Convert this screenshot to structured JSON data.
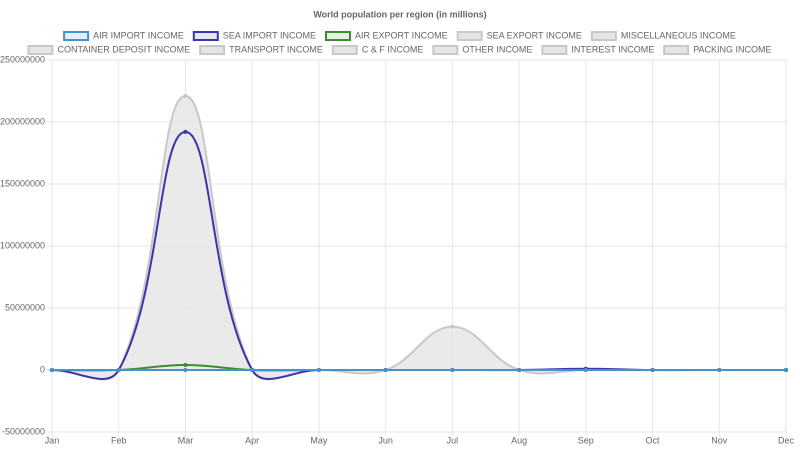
{
  "chart_data": {
    "type": "line",
    "title": "World population per region (in millions)",
    "categories": [
      "Jan",
      "Feb",
      "Mar",
      "Apr",
      "May",
      "Jun",
      "Jul",
      "Aug",
      "Sep",
      "Oct",
      "Nov",
      "Dec"
    ],
    "ylim": [
      -50000000,
      250000000
    ],
    "yticks": [
      -50000000,
      0,
      50000000,
      100000000,
      150000000,
      200000000,
      250000000
    ],
    "grid": true,
    "legend": "top",
    "series": [
      {
        "name": "AIR IMPORT INCOME",
        "color": "#3e95cd",
        "fill_color": "#e3eef6",
        "fill": false,
        "values": [
          0,
          0,
          0,
          0,
          0,
          0,
          0,
          0,
          0,
          0,
          0,
          0
        ]
      },
      {
        "name": "SEA IMPORT INCOME",
        "color": "#3a35a8",
        "fill_color": "#e6e6f2",
        "fill": false,
        "values": [
          0,
          0,
          192000000,
          0,
          0,
          0,
          0,
          0,
          1000000,
          0,
          0,
          0
        ]
      },
      {
        "name": "AIR EXPORT INCOME",
        "color": "#3c8d2f",
        "fill_color": "#e7f0e5",
        "fill": false,
        "values": [
          0,
          0,
          4000000,
          0,
          0,
          0,
          0,
          0,
          0,
          0,
          0,
          0
        ]
      },
      {
        "name": "SEA EXPORT INCOME",
        "color": "#c8c8c8",
        "fill_color": "#e5e5e5",
        "fill": true,
        "values": [
          0,
          0,
          221000000,
          0,
          0,
          0,
          35000000,
          0,
          0,
          0,
          0,
          0
        ]
      },
      {
        "name": "MISCELLANEOUS INCOME",
        "color": "#c8c8c8",
        "fill_color": "#e5e5e5",
        "fill": true,
        "values": [
          0,
          0,
          0,
          0,
          0,
          0,
          0,
          0,
          0,
          0,
          0,
          0
        ]
      },
      {
        "name": "CONTAINER DEPOSIT INCOME",
        "color": "#c8c8c8",
        "fill_color": "#e5e5e5",
        "fill": true,
        "values": [
          0,
          0,
          0,
          0,
          0,
          0,
          0,
          0,
          0,
          0,
          0,
          0
        ]
      },
      {
        "name": "TRANSPORT INCOME",
        "color": "#c8c8c8",
        "fill_color": "#e5e5e5",
        "fill": true,
        "values": [
          0,
          0,
          0,
          0,
          0,
          0,
          0,
          0,
          0,
          0,
          0,
          0
        ]
      },
      {
        "name": "C & F INCOME",
        "color": "#c8c8c8",
        "fill_color": "#e5e5e5",
        "fill": true,
        "values": [
          0,
          0,
          0,
          0,
          0,
          0,
          0,
          0,
          0,
          0,
          0,
          0
        ]
      },
      {
        "name": "OTHER INCOME",
        "color": "#c8c8c8",
        "fill_color": "#e5e5e5",
        "fill": true,
        "values": [
          0,
          0,
          0,
          0,
          0,
          0,
          0,
          0,
          0,
          0,
          0,
          0
        ]
      },
      {
        "name": "INTEREST INCOME",
        "color": "#c8c8c8",
        "fill_color": "#e5e5e5",
        "fill": true,
        "values": [
          0,
          0,
          0,
          0,
          0,
          0,
          0,
          0,
          0,
          0,
          0,
          0
        ]
      },
      {
        "name": "PACKING INCOME",
        "color": "#c8c8c8",
        "fill_color": "#e5e5e5",
        "fill": true,
        "values": [
          0,
          0,
          0,
          0,
          0,
          0,
          0,
          0,
          0,
          0,
          0,
          0
        ]
      }
    ]
  }
}
